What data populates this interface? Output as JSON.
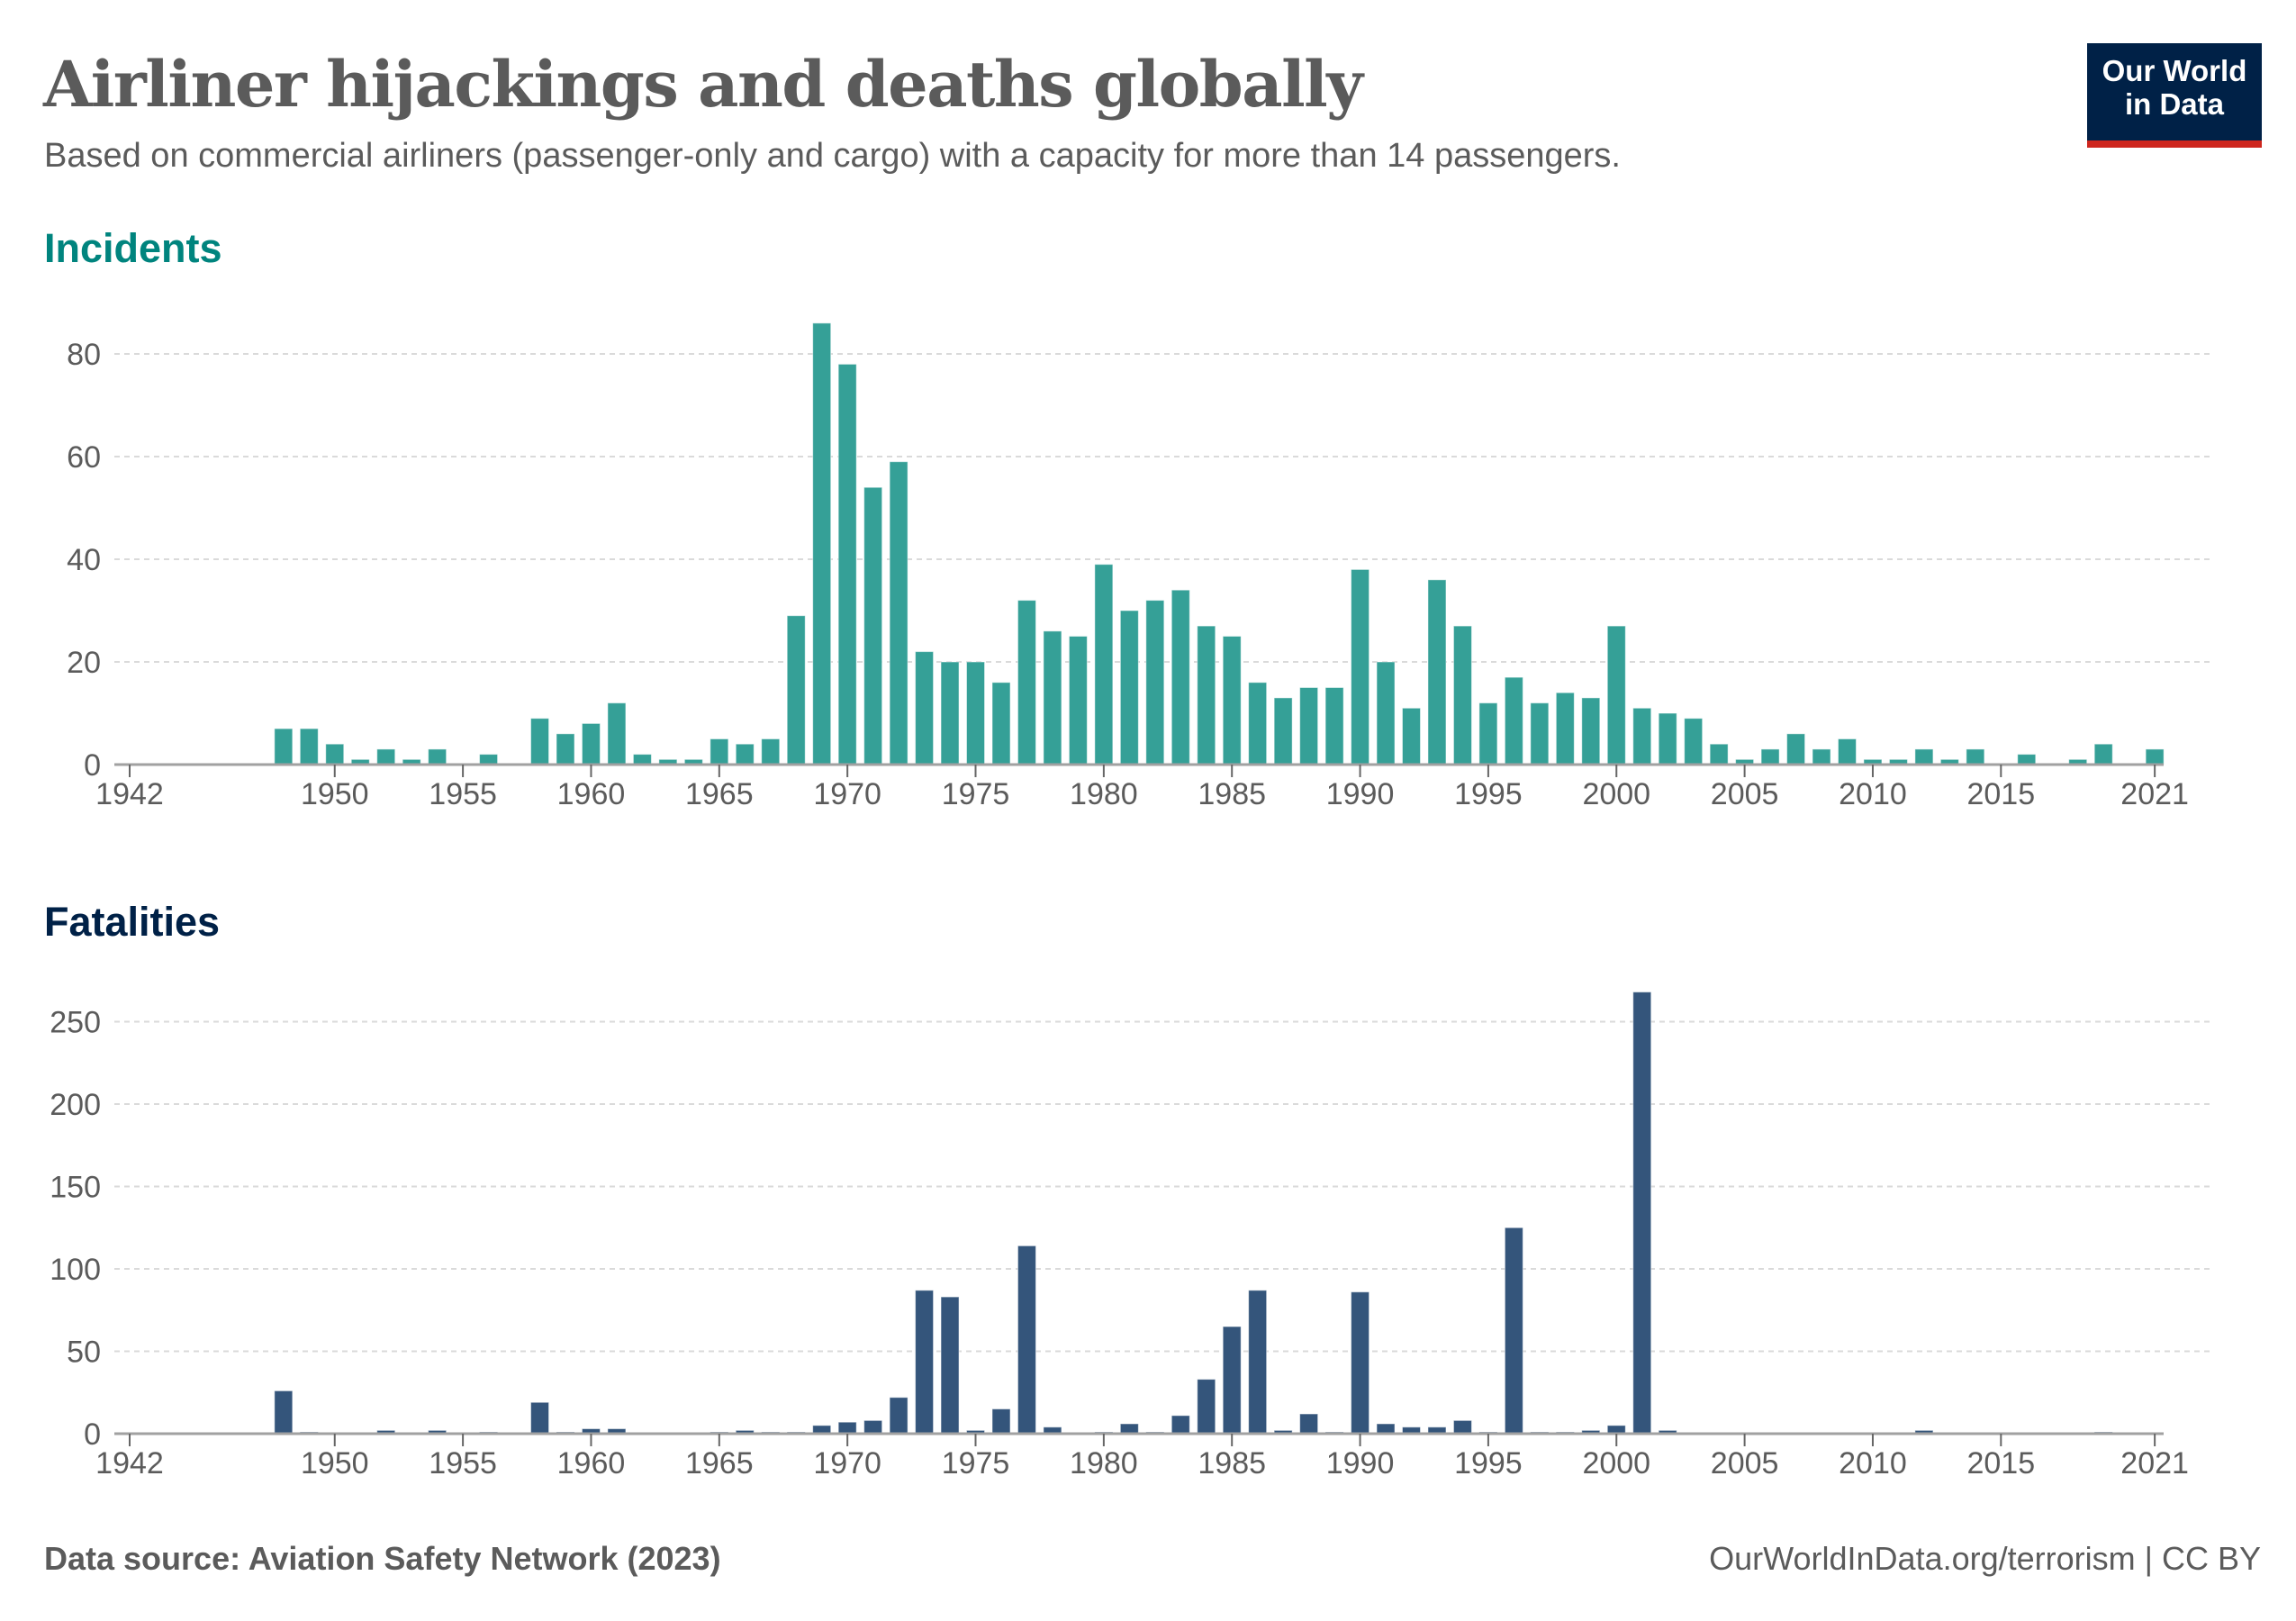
{
  "header": {
    "title": "Airliner hijackings and deaths globally",
    "subtitle": "Based on commercial airliners (passenger-only and cargo) with a capacity for more than 14 passengers.",
    "logo_line1": "Our World",
    "logo_line2": "in Data"
  },
  "footer": {
    "source": "Data source: Aviation Safety Network (2023)",
    "credit": "OurWorldInData.org/terrorism | CC BY"
  },
  "colors": {
    "incidents": "#35a097",
    "incidents_title": "#00847e",
    "fatalities": "#34557b",
    "fatalities_title": "#002147",
    "logo_bg": "#002147",
    "logo_accent": "#ce261e"
  },
  "chart_data": [
    {
      "type": "bar",
      "title": "Incidents",
      "xlabel": "",
      "ylabel": "",
      "xlim": [
        1942,
        2021
      ],
      "ylim": [
        0,
        86
      ],
      "yticks": [
        0,
        20,
        40,
        60,
        80
      ],
      "xticks": [
        1942,
        1950,
        1955,
        1960,
        1965,
        1970,
        1975,
        1980,
        1985,
        1990,
        1995,
        2000,
        2005,
        2010,
        2015,
        2021
      ],
      "grid": true,
      "x": [
        1948,
        1949,
        1950,
        1951,
        1952,
        1953,
        1954,
        1955,
        1956,
        1957,
        1958,
        1959,
        1960,
        1961,
        1962,
        1963,
        1964,
        1965,
        1966,
        1967,
        1968,
        1969,
        1970,
        1971,
        1972,
        1973,
        1974,
        1975,
        1976,
        1977,
        1978,
        1979,
        1980,
        1981,
        1982,
        1983,
        1984,
        1985,
        1986,
        1987,
        1988,
        1989,
        1990,
        1991,
        1992,
        1993,
        1994,
        1995,
        1996,
        1997,
        1998,
        1999,
        2000,
        2001,
        2002,
        2003,
        2004,
        2005,
        2006,
        2007,
        2008,
        2009,
        2010,
        2011,
        2012,
        2013,
        2014,
        2015,
        2016,
        2017,
        2018,
        2019,
        2020,
        2021
      ],
      "values": [
        7,
        7,
        4,
        1,
        3,
        1,
        3,
        0,
        2,
        0,
        9,
        6,
        8,
        12,
        2,
        1,
        1,
        5,
        4,
        5,
        29,
        86,
        78,
        54,
        59,
        22,
        20,
        20,
        16,
        32,
        26,
        25,
        39,
        30,
        32,
        34,
        27,
        25,
        16,
        13,
        15,
        15,
        38,
        20,
        11,
        36,
        27,
        12,
        17,
        12,
        14,
        13,
        27,
        11,
        10,
        9,
        4,
        1,
        3,
        6,
        3,
        5,
        1,
        1,
        3,
        1,
        3,
        0,
        2,
        0,
        1,
        4,
        0,
        3
      ]
    },
    {
      "type": "bar",
      "title": "Fatalities",
      "xlabel": "",
      "ylabel": "",
      "xlim": [
        1942,
        2021
      ],
      "ylim": [
        0,
        268
      ],
      "yticks": [
        0,
        50,
        100,
        150,
        200,
        250
      ],
      "xticks": [
        1942,
        1950,
        1955,
        1960,
        1965,
        1970,
        1975,
        1980,
        1985,
        1990,
        1995,
        2000,
        2005,
        2010,
        2015,
        2021
      ],
      "grid": true,
      "x": [
        1948,
        1949,
        1950,
        1951,
        1952,
        1953,
        1954,
        1955,
        1956,
        1957,
        1958,
        1959,
        1960,
        1961,
        1962,
        1963,
        1964,
        1965,
        1966,
        1967,
        1968,
        1969,
        1970,
        1971,
        1972,
        1973,
        1974,
        1975,
        1976,
        1977,
        1978,
        1979,
        1980,
        1981,
        1982,
        1983,
        1984,
        1985,
        1986,
        1987,
        1988,
        1989,
        1990,
        1991,
        1992,
        1993,
        1994,
        1995,
        1996,
        1997,
        1998,
        1999,
        2000,
        2001,
        2002,
        2003,
        2004,
        2005,
        2006,
        2007,
        2008,
        2009,
        2010,
        2011,
        2012,
        2013,
        2014,
        2015,
        2016,
        2017,
        2018,
        2019,
        2020,
        2021
      ],
      "values": [
        26,
        1,
        0,
        0,
        2,
        0,
        2,
        0,
        1,
        0,
        19,
        1,
        3,
        3,
        0,
        0,
        0,
        1,
        2,
        1,
        1,
        5,
        7,
        8,
        22,
        87,
        83,
        2,
        15,
        114,
        4,
        0,
        1,
        6,
        1,
        11,
        33,
        65,
        87,
        2,
        12,
        1,
        86,
        6,
        4,
        4,
        8,
        1,
        125,
        1,
        1,
        2,
        5,
        268,
        2,
        0,
        0,
        0,
        0,
        0,
        0,
        0,
        0,
        0,
        2,
        0,
        0,
        0,
        0,
        0,
        0,
        1,
        0,
        0
      ]
    }
  ]
}
